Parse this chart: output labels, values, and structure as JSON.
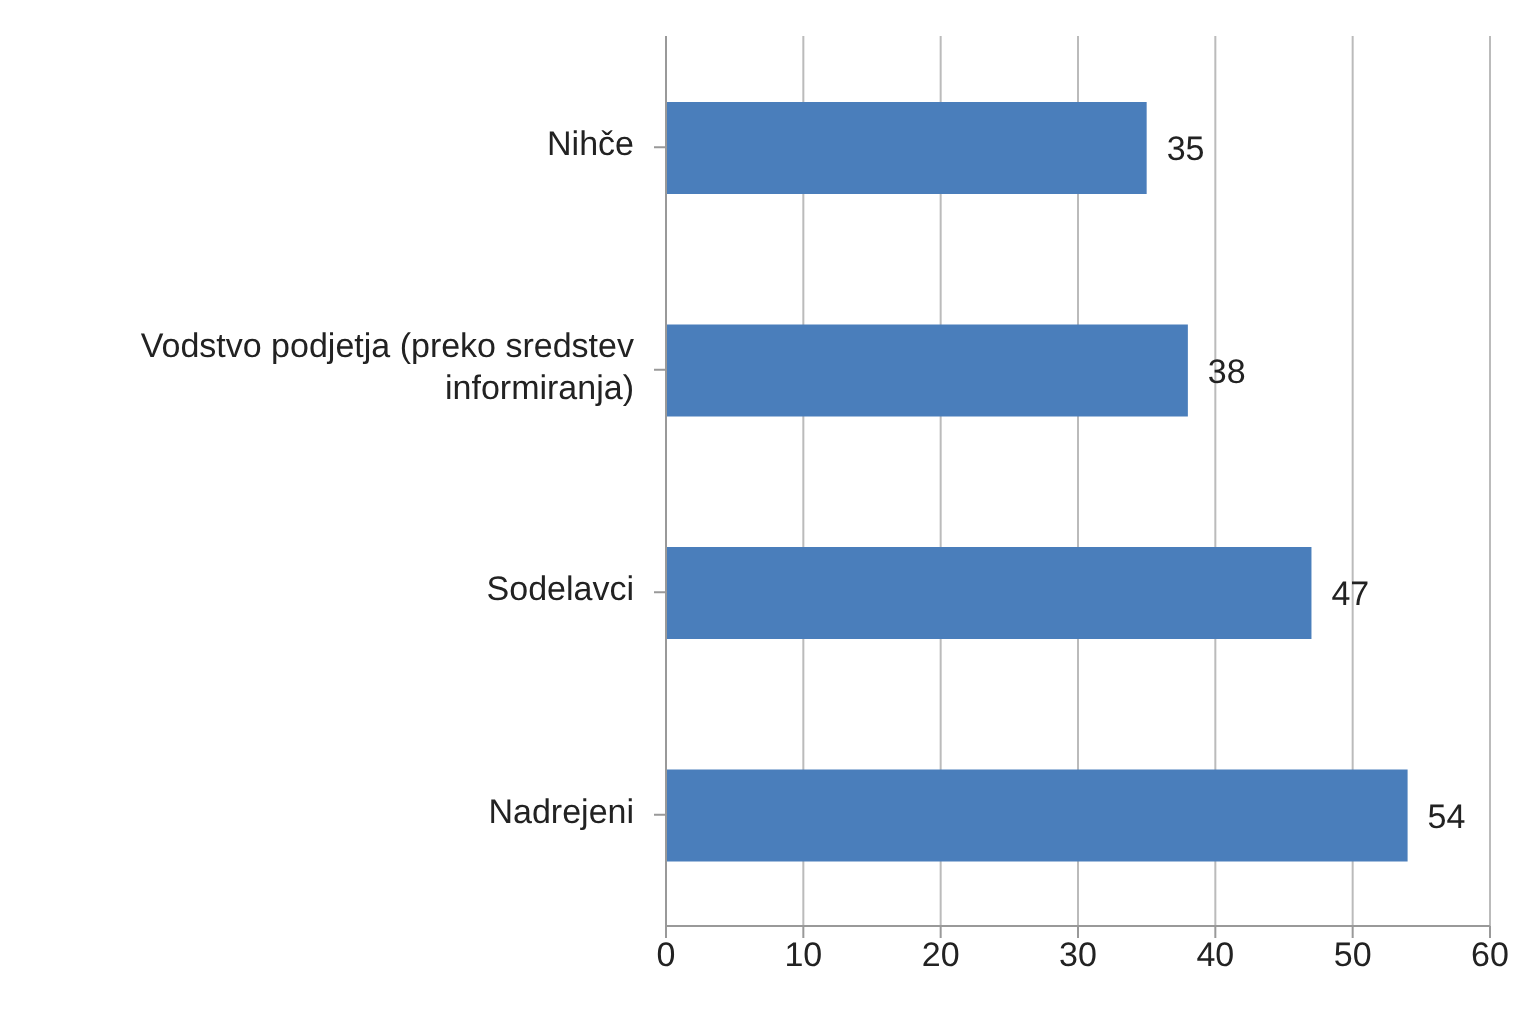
{
  "chart_data": {
    "type": "bar",
    "orientation": "horizontal",
    "categories": [
      "Nihče",
      "Vodstvo podjetja (preko sredstev informiranja)",
      "Sodelavci",
      "Nadrejeni"
    ],
    "values": [
      35,
      38,
      47,
      54
    ],
    "color": "#4a7ebb",
    "xlim": [
      0,
      60
    ],
    "xticks": [
      0,
      10,
      20,
      30,
      40,
      50,
      60
    ],
    "grid": "x",
    "data_labels": true
  }
}
